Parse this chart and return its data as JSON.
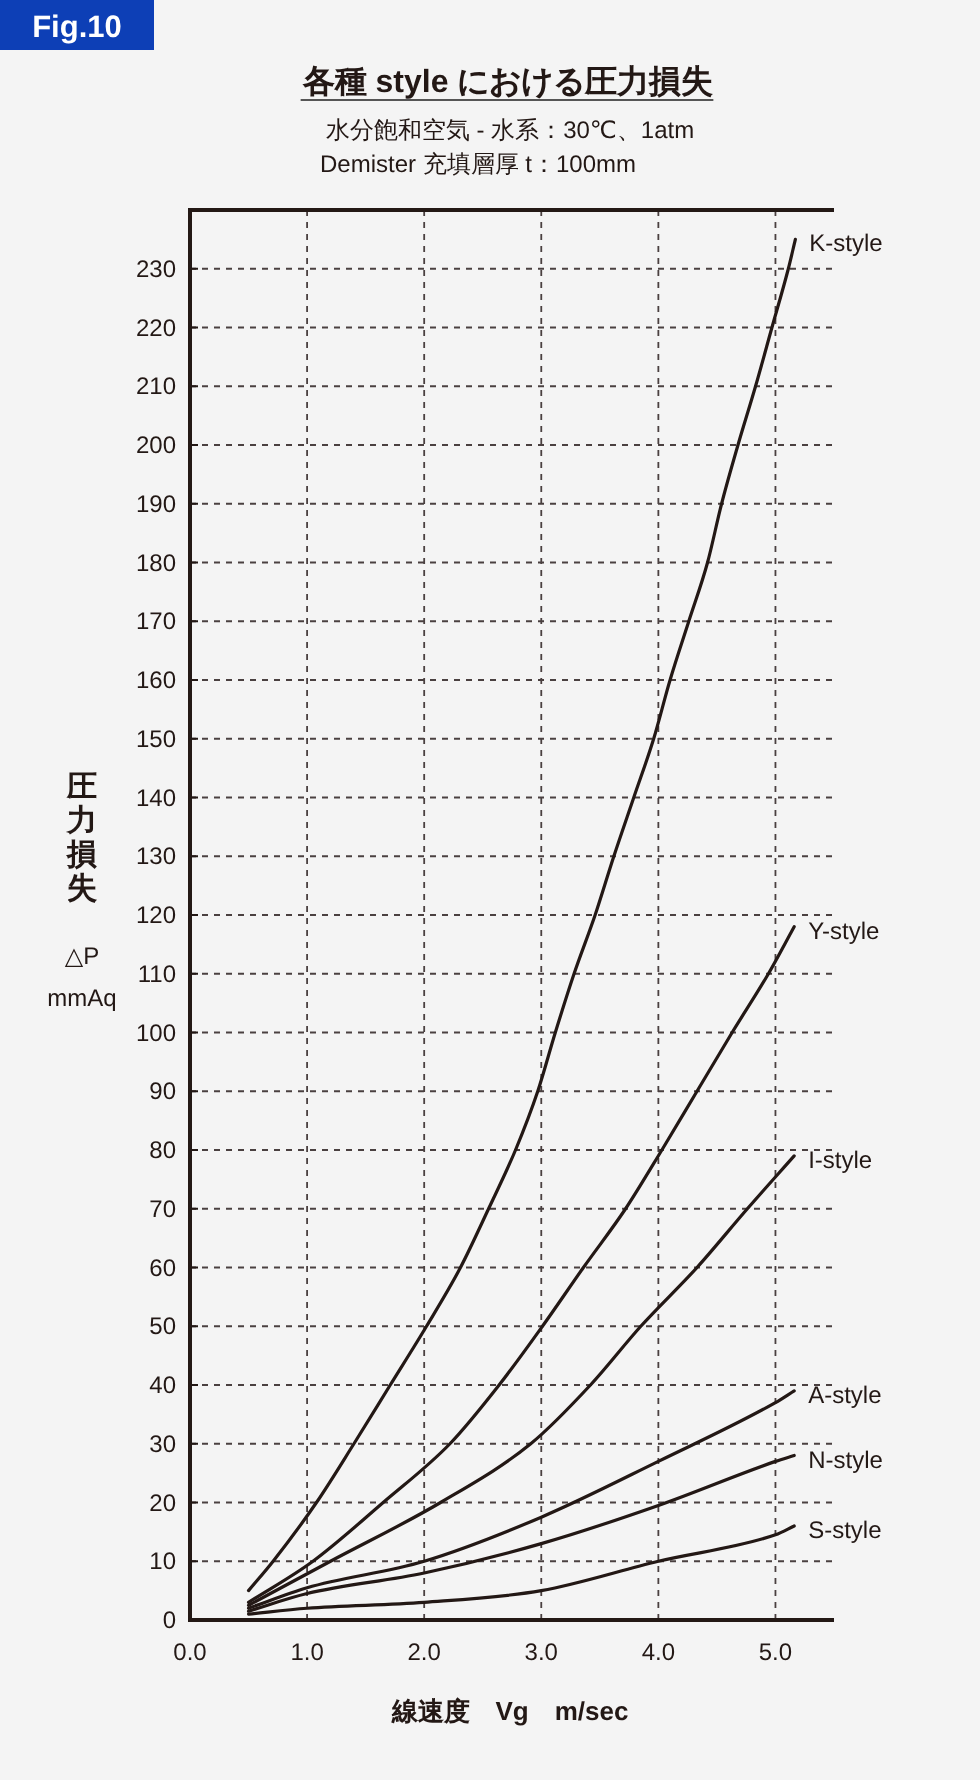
{
  "chart_data": {
    "type": "line",
    "title": "各種 style における圧力損失",
    "subtitle": "水分飽和空気 - 水系：30℃、1atm\nDemister 充填層厚 t：100mm",
    "xlabel": "線速度　Vg　m/sec",
    "ylabel": "圧力損失\n△P\nmmAq",
    "annotations": [
      "Fig.10"
    ],
    "xlim": [
      0,
      5.5
    ],
    "ylim": [
      0,
      240
    ],
    "xticks": [
      {
        "value": 0,
        "label": "0.0"
      },
      {
        "value": 1,
        "label": "1.0"
      },
      {
        "value": 2,
        "label": "2.0"
      },
      {
        "value": 3,
        "label": "3.0"
      },
      {
        "value": 4,
        "label": "4.0"
      },
      {
        "value": 5,
        "label": "5.0"
      }
    ],
    "yticks": [
      0,
      10,
      20,
      30,
      40,
      50,
      60,
      70,
      80,
      90,
      100,
      110,
      120,
      130,
      140,
      150,
      160,
      170,
      180,
      190,
      200,
      210,
      220,
      230
    ],
    "grid": true,
    "legend": false,
    "line_style": "solid",
    "series": [
      {
        "name": "K-style",
        "color": "#231815",
        "x": [
          0.5,
          0.71,
          1.08,
          1.4,
          1.71,
          2.02,
          2.31,
          2.55,
          2.78,
          2.97,
          3.12,
          3.28,
          3.46,
          3.62,
          3.79,
          3.96,
          4.1,
          4.26,
          4.42,
          4.54,
          4.68,
          4.83,
          4.97,
          5.11,
          5.17
        ],
        "values": [
          5,
          10,
          20,
          30,
          40,
          50,
          60,
          70,
          80,
          90,
          100,
          110,
          120,
          130,
          140,
          150,
          160,
          170,
          180,
          190,
          200,
          210,
          220,
          230,
          235
        ]
      },
      {
        "name": "Y-style",
        "color": "#231815",
        "x": [
          0.5,
          1.05,
          1.65,
          2.22,
          2.64,
          3.01,
          3.36,
          3.72,
          4.03,
          4.33,
          4.63,
          4.94,
          5.16
        ],
        "values": [
          3,
          10,
          20,
          30,
          40,
          50,
          60,
          70,
          80,
          90,
          100,
          110,
          118
        ]
      },
      {
        "name": "I-style",
        "color": "#231815",
        "x": [
          0.5,
          1.2,
          2.14,
          2.91,
          3.42,
          3.85,
          4.33,
          4.76,
          5.16
        ],
        "values": [
          2.5,
          10,
          20,
          30,
          40,
          50,
          60,
          70,
          79
        ]
      },
      {
        "name": "A-style",
        "color": "#231815",
        "x": [
          0.5,
          1,
          2,
          3,
          4,
          5,
          5.16
        ],
        "values": [
          2,
          5.5,
          10,
          17.5,
          27,
          37,
          39
        ]
      },
      {
        "name": "N-style",
        "color": "#231815",
        "x": [
          0.5,
          1,
          2,
          3,
          4,
          5,
          5.16
        ],
        "values": [
          1.5,
          4.5,
          8,
          13,
          19.5,
          27,
          28
        ]
      },
      {
        "name": "S-style",
        "color": "#231815",
        "x": [
          0.5,
          1,
          2,
          3,
          4,
          5,
          5.16
        ],
        "values": [
          1,
          2,
          3,
          5,
          10,
          14.5,
          16
        ]
      }
    ]
  }
}
